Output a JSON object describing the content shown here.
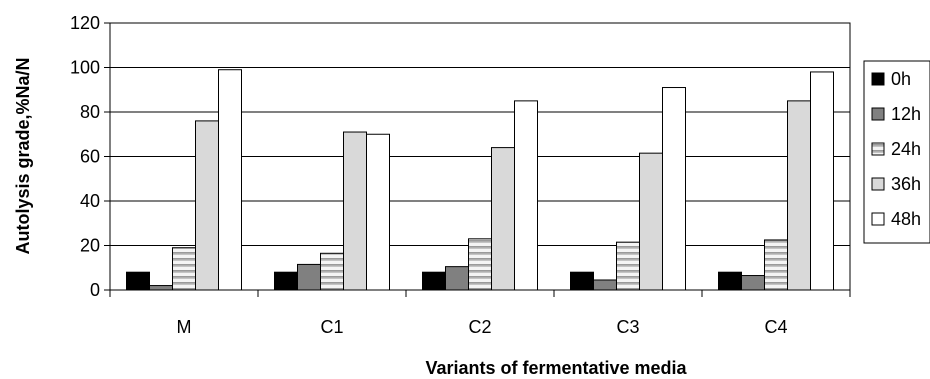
{
  "chart_data": {
    "type": "bar",
    "title": "",
    "xlabel": "Variants of fermentative media",
    "ylabel": "Autolysis grade,%Na/N",
    "categories": [
      "M",
      "C1",
      "C2",
      "C3",
      "C4"
    ],
    "ylim": [
      0,
      120
    ],
    "yticks": [
      0,
      20,
      40,
      60,
      80,
      100,
      120
    ],
    "grid": true,
    "legend_position": "right",
    "series": [
      {
        "name": "0h",
        "values": [
          8,
          8,
          8,
          8,
          8
        ],
        "color": "#000000",
        "pattern": "solid"
      },
      {
        "name": "12h",
        "values": [
          2,
          11.5,
          10.5,
          4.5,
          6.5
        ],
        "color": "#808080",
        "pattern": "solid"
      },
      {
        "name": "24h",
        "values": [
          19,
          16.5,
          23,
          21.5,
          22.5
        ],
        "color": "#d0d0d0",
        "pattern": "horizontal-gradient-stripes"
      },
      {
        "name": "36h",
        "values": [
          76,
          71,
          64,
          61.5,
          85
        ],
        "color": "#d9d9d9",
        "pattern": "solid"
      },
      {
        "name": "48h",
        "values": [
          99,
          70,
          85,
          91,
          98
        ],
        "color": "#ffffff",
        "pattern": "solid"
      }
    ]
  }
}
